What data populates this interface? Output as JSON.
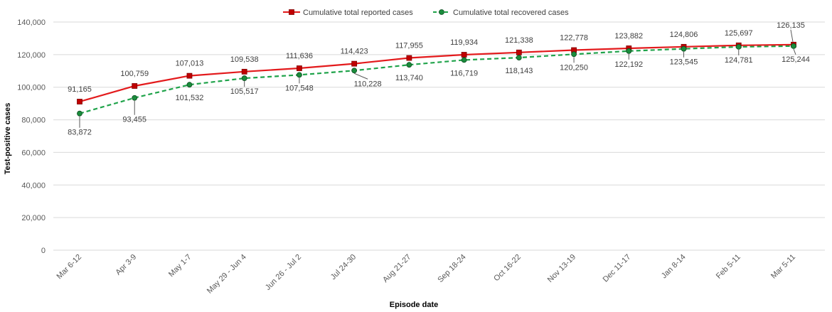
{
  "chart_data": {
    "type": "line",
    "title": "",
    "xlabel": "Episode date",
    "ylabel": "Test-positive cases",
    "ylim": [
      0,
      140000
    ],
    "yticks": [
      0,
      20000,
      40000,
      60000,
      80000,
      100000,
      120000,
      140000
    ],
    "ytick_labels": [
      "0",
      "20,000",
      "40,000",
      "60,000",
      "80,000",
      "100,000",
      "120,000",
      "140,000"
    ],
    "grid": true,
    "legend_position": "top-center",
    "categories": [
      "Mar 6-12",
      "Apr 3-9",
      "May 1-7",
      "May 29 - Jun 4",
      "Jun 26 - Jul 2",
      "Jul 24-30",
      "Aug 21-27",
      "Sep 18-24",
      "Oct 16-22",
      "Nov 13-19",
      "Dec 11-17",
      "Jan 8-14",
      "Feb 5-11",
      "Mar 5-11"
    ],
    "series": [
      {
        "name": "Cumulative total reported cases",
        "color": "#e31a1c",
        "marker_color": "#c00000",
        "marker": "square",
        "line_style": "solid",
        "values": [
          91165,
          100759,
          107013,
          109538,
          111636,
          114423,
          117955,
          119934,
          121338,
          122778,
          123882,
          124806,
          125697,
          126135
        ],
        "labels": [
          "91,165",
          "100,759",
          "107,013",
          "109,538",
          "111,636",
          "114,423",
          "117,955",
          "119,934",
          "121,338",
          "122,778",
          "123,882",
          "124,806",
          "125,697",
          "126,135"
        ]
      },
      {
        "name": "Cumulative total recovered cases",
        "color": "#1fa34a",
        "marker_color": "#1a8c3c",
        "marker": "circle",
        "line_style": "dashed",
        "values": [
          83872,
          93455,
          101532,
          105517,
          107548,
          110228,
          113740,
          116719,
          118143,
          120250,
          122192,
          123545,
          124781,
          125244
        ],
        "labels": [
          "83,872",
          "93,455",
          "101,532",
          "105,517",
          "107,548",
          "110,228",
          "113,740",
          "116,719",
          "118,143",
          "120,250",
          "122,192",
          "123,545",
          "124,781",
          "125,244"
        ]
      }
    ]
  }
}
